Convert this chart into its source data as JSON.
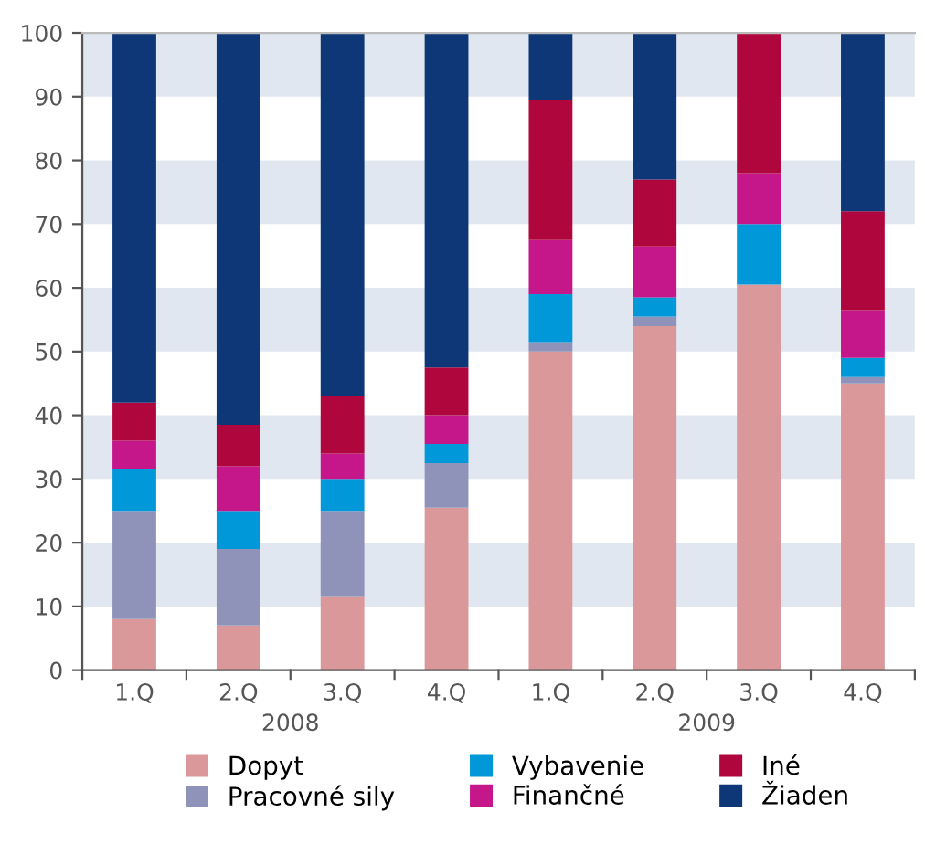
{
  "chart_data": {
    "type": "bar",
    "stacked": true,
    "categories": [
      "1.Q",
      "2.Q",
      "3.Q",
      "4.Q",
      "1.Q",
      "2.Q",
      "3.Q",
      "4.Q"
    ],
    "annotations": [
      "2008",
      "2009"
    ],
    "series": [
      {
        "name": "Dopyt",
        "color": "#db989a",
        "values": [
          8,
          7,
          11.5,
          25.5,
          50,
          54,
          60.5,
          45
        ]
      },
      {
        "name": "Pracovné sily",
        "color": "#8f93ba",
        "values": [
          17,
          12,
          13.5,
          7,
          1.5,
          1.5,
          0,
          1
        ]
      },
      {
        "name": "Vybavenie",
        "color": "#0098d8",
        "values": [
          6.5,
          6,
          5,
          3,
          7.5,
          3,
          9.5,
          3
        ]
      },
      {
        "name": "Finančné",
        "color": "#c5168a",
        "values": [
          4.5,
          7,
          4,
          4.5,
          8.5,
          8,
          8,
          7.5
        ]
      },
      {
        "name": "Iné",
        "color": "#b0063e",
        "values": [
          6,
          6.5,
          9,
          7.5,
          22,
          10.5,
          22,
          15.5
        ]
      },
      {
        "name": "Žiaden",
        "color": "#0e3778",
        "values": [
          58,
          61.5,
          57,
          52.5,
          10.5,
          23,
          0,
          28
        ]
      }
    ],
    "ylim": [
      0,
      100
    ],
    "yticks": [
      0,
      10,
      20,
      30,
      40,
      50,
      60,
      70,
      80,
      90,
      100
    ],
    "bands": [
      {
        "axis": "y",
        "from": 10,
        "to": 20,
        "color": "#e1e7f1"
      },
      {
        "axis": "y",
        "from": 30,
        "to": 40,
        "color": "#e1e7f1"
      },
      {
        "axis": "y",
        "from": 50,
        "to": 60,
        "color": "#e1e7f1"
      },
      {
        "axis": "y",
        "from": 70,
        "to": 80,
        "color": "#e1e7f1"
      },
      {
        "axis": "y",
        "from": 90,
        "to": 100,
        "color": "#e1e7f1"
      }
    ],
    "grid": false,
    "legend": "bottom"
  }
}
